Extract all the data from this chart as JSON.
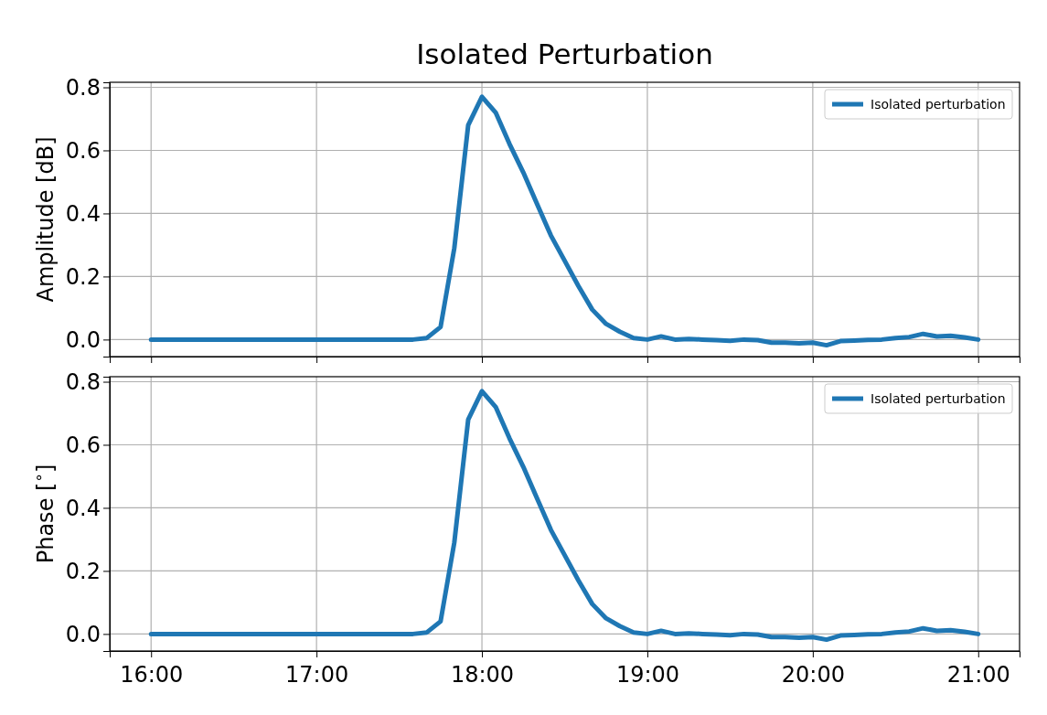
{
  "chart_data": [
    {
      "type": "line",
      "title": "Isolated Perturbation",
      "ylabel": "Amplitude [dB]",
      "xlim": [
        15.75,
        21.25
      ],
      "ylim": [
        -0.054,
        0.816
      ],
      "xticks": [
        {
          "value": 16,
          "label": null
        },
        {
          "value": 17,
          "label": null
        },
        {
          "value": 18,
          "label": null
        },
        {
          "value": 19,
          "label": null
        },
        {
          "value": 20,
          "label": null
        },
        {
          "value": 21,
          "label": null
        }
      ],
      "yticks": [
        {
          "value": 0,
          "label": "0.0"
        },
        0.2,
        0.4,
        0.6,
        0.8
      ],
      "grid": true,
      "legend": "top right",
      "tick_labels": "y",
      "line_style": "solid",
      "marker": "none",
      "x": [
        16,
        16.083,
        16.167,
        16.25,
        16.333,
        16.417,
        16.5,
        16.583,
        16.667,
        16.75,
        16.833,
        16.917,
        17,
        17.083,
        17.167,
        17.25,
        17.333,
        17.417,
        17.5,
        17.583,
        17.667,
        17.75,
        17.833,
        17.917,
        18,
        18.083,
        18.167,
        18.25,
        18.333,
        18.417,
        18.5,
        18.583,
        18.667,
        18.75,
        18.833,
        18.917,
        19,
        19.083,
        19.167,
        19.25,
        19.333,
        19.417,
        19.5,
        19.583,
        19.667,
        19.75,
        19.833,
        19.917,
        20,
        20.083,
        20.167,
        20.25,
        20.333,
        20.417,
        20.5,
        20.583,
        20.667,
        20.75,
        20.833,
        20.917,
        21
      ],
      "series": [
        {
          "name": "Isolated perturbation",
          "color": "#1f77b4",
          "values": [
            0,
            0,
            0,
            0,
            0,
            0,
            0,
            0,
            0,
            0,
            0,
            0,
            0,
            0,
            0,
            0,
            0,
            0,
            0,
            0,
            0.005,
            0.04,
            0.29,
            0.68,
            0.77,
            0.72,
            0.62,
            0.53,
            0.43,
            0.33,
            0.25,
            0.17,
            0.095,
            0.05,
            0.025,
            0.005,
            0,
            0.01,
            0,
            0.002,
            0,
            -0.002,
            -0.004,
            0,
            -0.002,
            -0.01,
            -0.01,
            -0.012,
            -0.01,
            -0.018,
            -0.005,
            -0.003,
            -0.001,
            0,
            0.005,
            0.008,
            0.018,
            0.01,
            0.012,
            0.007,
            0
          ]
        }
      ]
    },
    {
      "type": "line",
      "ylabel": "Phase [$^{∘}$]",
      "xlim": [
        15.75,
        21.25
      ],
      "ylim": [
        -0.054,
        0.816
      ],
      "xticks": [
        {
          "value": 16,
          "label": "16:00"
        },
        {
          "value": 17,
          "label": "17:00"
        },
        {
          "value": 18,
          "label": "18:00"
        },
        {
          "value": 19,
          "label": "19:00"
        },
        {
          "value": 20,
          "label": "20:00"
        },
        {
          "value": 21,
          "label": "21:00"
        }
      ],
      "yticks": [
        {
          "value": 0,
          "label": "0.0"
        },
        0.2,
        0.4,
        0.6,
        0.8
      ],
      "grid": true,
      "legend": "top right",
      "line_style": "solid",
      "marker": "none",
      "x": [
        16,
        16.083,
        16.167,
        16.25,
        16.333,
        16.417,
        16.5,
        16.583,
        16.667,
        16.75,
        16.833,
        16.917,
        17,
        17.083,
        17.167,
        17.25,
        17.333,
        17.417,
        17.5,
        17.583,
        17.667,
        17.75,
        17.833,
        17.917,
        18,
        18.083,
        18.167,
        18.25,
        18.333,
        18.417,
        18.5,
        18.583,
        18.667,
        18.75,
        18.833,
        18.917,
        19,
        19.083,
        19.167,
        19.25,
        19.333,
        19.417,
        19.5,
        19.583,
        19.667,
        19.75,
        19.833,
        19.917,
        20,
        20.083,
        20.167,
        20.25,
        20.333,
        20.417,
        20.5,
        20.583,
        20.667,
        20.75,
        20.833,
        20.917,
        21
      ],
      "series": [
        {
          "name": "Isolated perturbation",
          "color": "#1f77b4",
          "values": [
            0,
            0,
            0,
            0,
            0,
            0,
            0,
            0,
            0,
            0,
            0,
            0,
            0,
            0,
            0,
            0,
            0,
            0,
            0,
            0,
            0.005,
            0.04,
            0.29,
            0.68,
            0.77,
            0.72,
            0.62,
            0.53,
            0.43,
            0.33,
            0.25,
            0.17,
            0.095,
            0.05,
            0.025,
            0.005,
            0,
            0.01,
            0,
            0.002,
            0,
            -0.002,
            -0.004,
            0,
            -0.002,
            -0.01,
            -0.01,
            -0.012,
            -0.01,
            -0.018,
            -0.005,
            -0.003,
            -0.001,
            0,
            0.005,
            0.008,
            0.018,
            0.01,
            0.012,
            0.007,
            0
          ]
        }
      ]
    }
  ]
}
